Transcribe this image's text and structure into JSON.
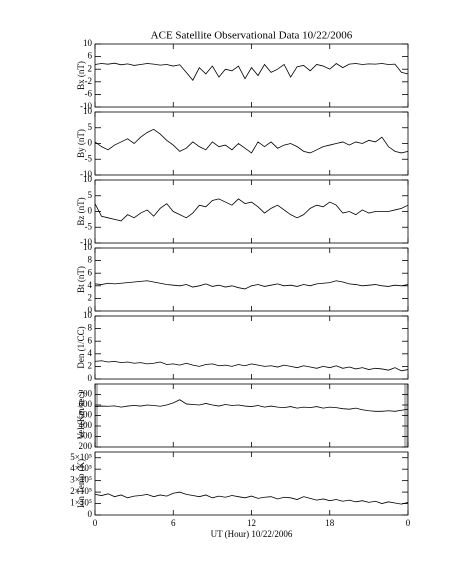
{
  "chart_data": [
    {
      "type": "line",
      "title": "ACE Satellite Observational Data   10/22/2006",
      "ylabel": "Bx (nT)",
      "color": "#000000",
      "x": [
        0,
        0.5,
        1,
        1.5,
        2,
        2.5,
        3,
        3.5,
        4,
        4.5,
        5,
        5.5,
        6,
        6.5,
        7,
        7.5,
        8,
        8.5,
        9,
        9.5,
        10,
        10.5,
        11,
        11.5,
        12,
        12.5,
        13,
        13.5,
        14,
        14.5,
        15,
        15.5,
        16,
        16.5,
        17,
        17.5,
        18,
        18.5,
        19,
        19.5,
        20,
        20.5,
        21,
        21.5,
        22,
        22.5,
        23,
        23.5,
        24
      ],
      "values": [
        3.5,
        3.8,
        3.6,
        3.9,
        3.4,
        3.7,
        3.2,
        3.5,
        3.8,
        3.6,
        3.3,
        3.5,
        3.0,
        3.4,
        1.0,
        -1.5,
        2.5,
        0.5,
        3.0,
        -0.5,
        2.0,
        1.5,
        3.0,
        -1.0,
        2.5,
        0.0,
        3.5,
        1.0,
        2.0,
        3.5,
        -0.5,
        2.8,
        3.2,
        1.5,
        3.5,
        3.0,
        2.0,
        3.8,
        2.5,
        3.6,
        3.8,
        3.5,
        3.7,
        3.6,
        3.8,
        3.5,
        3.6,
        1.0,
        0.5
      ],
      "xlim": [
        0,
        24
      ],
      "xticks": [
        0,
        6,
        12,
        18,
        24
      ],
      "ylim": [
        -10,
        10
      ],
      "yticks": [
        -10,
        -6,
        -2,
        2,
        6,
        10
      ]
    },
    {
      "type": "line",
      "ylabel": "By (nT)",
      "color": "#000000",
      "x": [
        0,
        0.5,
        1,
        1.5,
        2,
        2.5,
        3,
        3.5,
        4,
        4.5,
        5,
        5.5,
        6,
        6.5,
        7,
        7.5,
        8,
        8.5,
        9,
        9.5,
        10,
        10.5,
        11,
        11.5,
        12,
        12.5,
        13,
        13.5,
        14,
        14.5,
        15,
        15.5,
        16,
        16.5,
        17,
        17.5,
        18,
        18.5,
        19,
        19.5,
        20,
        20.5,
        21,
        21.5,
        22,
        22.5,
        23,
        23.5,
        24
      ],
      "values": [
        0.5,
        -1.0,
        -2.0,
        -0.5,
        0.5,
        1.5,
        0.0,
        2.0,
        3.5,
        4.5,
        3.0,
        1.0,
        -0.5,
        -2.5,
        -1.5,
        0.5,
        -1.0,
        -2.0,
        0.5,
        -1.0,
        -0.5,
        -2.0,
        0.0,
        -1.5,
        -3.0,
        0.5,
        -1.0,
        0.5,
        -1.5,
        -0.5,
        0.0,
        -1.0,
        -2.5,
        -3.0,
        -2.0,
        -1.0,
        -0.5,
        0.0,
        0.5,
        -0.5,
        0.5,
        0.0,
        1.0,
        0.5,
        2.0,
        -1.0,
        -2.5,
        -3.0,
        -2.5
      ],
      "xlim": [
        0,
        24
      ],
      "xticks": [
        0,
        6,
        12,
        18,
        24
      ],
      "ylim": [
        -10,
        10
      ],
      "yticks": [
        -10,
        -5,
        0,
        5,
        10
      ]
    },
    {
      "type": "line",
      "ylabel": "Bz (nT)",
      "color": "#000000",
      "x": [
        0,
        0.5,
        1,
        1.5,
        2,
        2.5,
        3,
        3.5,
        4,
        4.5,
        5,
        5.5,
        6,
        6.5,
        7,
        7.5,
        8,
        8.5,
        9,
        9.5,
        10,
        10.5,
        11,
        11.5,
        12,
        12.5,
        13,
        13.5,
        14,
        14.5,
        15,
        15.5,
        16,
        16.5,
        17,
        17.5,
        18,
        18.5,
        19,
        19.5,
        20,
        20.5,
        21,
        21.5,
        22,
        22.5,
        23,
        23.5,
        24
      ],
      "values": [
        2.5,
        -1.5,
        -2.0,
        -2.5,
        -3.0,
        -1.0,
        -2.0,
        -0.5,
        0.5,
        -1.5,
        1.0,
        2.5,
        0.0,
        -1.0,
        -2.0,
        -0.5,
        2.0,
        1.5,
        3.5,
        4.0,
        3.0,
        2.0,
        4.0,
        2.5,
        3.0,
        1.5,
        -0.5,
        1.0,
        2.0,
        0.5,
        -1.0,
        -2.0,
        -1.0,
        1.0,
        2.0,
        1.5,
        3.0,
        2.0,
        -0.5,
        0.0,
        -1.0,
        0.5,
        -0.5,
        0.0,
        0.0,
        0.0,
        0.5,
        1.0,
        2.0
      ],
      "xlim": [
        0,
        24
      ],
      "xticks": [
        0,
        6,
        12,
        18,
        24
      ],
      "ylim": [
        -10,
        10
      ],
      "yticks": [
        -10,
        -5,
        0,
        5,
        10
      ]
    },
    {
      "type": "line",
      "ylabel": "Bt (nT)",
      "color": "#000000",
      "x": [
        0,
        0.5,
        1,
        1.5,
        2,
        2.5,
        3,
        3.5,
        4,
        4.5,
        5,
        5.5,
        6,
        6.5,
        7,
        7.5,
        8,
        8.5,
        9,
        9.5,
        10,
        10.5,
        11,
        11.5,
        12,
        12.5,
        13,
        13.5,
        14,
        14.5,
        15,
        15.5,
        16,
        16.5,
        17,
        17.5,
        18,
        18.5,
        19,
        19.5,
        20,
        20.5,
        21,
        21.5,
        22,
        22.5,
        23,
        23.5,
        24
      ],
      "values": [
        4.3,
        4.2,
        4.4,
        4.3,
        4.4,
        4.5,
        4.6,
        4.7,
        4.8,
        4.6,
        4.4,
        4.2,
        4.1,
        4.0,
        4.2,
        3.8,
        4.0,
        4.3,
        3.9,
        4.1,
        3.8,
        4.0,
        3.7,
        3.5,
        4.0,
        4.2,
        3.9,
        4.1,
        4.3,
        4.0,
        4.1,
        3.9,
        4.2,
        4.0,
        4.3,
        4.4,
        4.5,
        4.8,
        4.6,
        4.3,
        4.2,
        4.0,
        4.1,
        4.2,
        4.0,
        3.9,
        4.1,
        4.0,
        4.2
      ],
      "xlim": [
        0,
        24
      ],
      "xticks": [
        0,
        6,
        12,
        18,
        24
      ],
      "ylim": [
        0,
        10
      ],
      "yticks": [
        0,
        2,
        4,
        6,
        8,
        10
      ]
    },
    {
      "type": "line",
      "ylabel": "Den (1/CC)",
      "color": "#000000",
      "x": [
        0,
        0.5,
        1,
        1.5,
        2,
        2.5,
        3,
        3.5,
        4,
        4.5,
        5,
        5.5,
        6,
        6.5,
        7,
        7.5,
        8,
        8.5,
        9,
        9.5,
        10,
        10.5,
        11,
        11.5,
        12,
        12.5,
        13,
        13.5,
        14,
        14.5,
        15,
        15.5,
        16,
        16.5,
        17,
        17.5,
        18,
        18.5,
        19,
        19.5,
        20,
        20.5,
        21,
        21.5,
        22,
        22.5,
        23,
        23.5,
        24
      ],
      "values": [
        2.8,
        2.9,
        2.7,
        2.8,
        2.6,
        2.7,
        2.5,
        2.6,
        2.4,
        2.5,
        2.7,
        2.3,
        2.4,
        2.2,
        2.5,
        2.2,
        2.0,
        2.3,
        2.4,
        2.1,
        2.2,
        2.0,
        2.3,
        2.1,
        2.4,
        2.2,
        2.0,
        2.1,
        1.9,
        2.2,
        2.0,
        1.8,
        2.1,
        1.9,
        1.7,
        2.0,
        1.8,
        2.1,
        1.7,
        1.9,
        1.6,
        1.8,
        1.5,
        1.7,
        1.6,
        1.4,
        1.8,
        1.3,
        1.5
      ],
      "xlim": [
        0,
        24
      ],
      "xticks": [
        0,
        6,
        12,
        18,
        24
      ],
      "ylim": [
        0,
        10
      ],
      "yticks": [
        0,
        2,
        4,
        6,
        8,
        10
      ]
    },
    {
      "type": "line",
      "ylabel": "Vel (Km/sec)",
      "color": "#000000",
      "x": [
        0,
        0.5,
        1,
        1.5,
        2,
        2.5,
        3,
        3.5,
        4,
        4.5,
        5,
        5.5,
        6,
        6.5,
        7,
        7.5,
        8,
        8.5,
        9,
        9.5,
        10,
        10.5,
        11,
        11.5,
        12,
        12.5,
        13,
        13.5,
        14,
        14.5,
        15,
        15.5,
        16,
        16.5,
        17,
        17.5,
        18,
        18.5,
        19,
        19.5,
        20,
        20.5,
        21,
        21.5,
        22,
        22.5,
        23,
        23.5,
        24
      ],
      "values": [
        585,
        590,
        588,
        592,
        580,
        590,
        595,
        590,
        600,
        595,
        588,
        600,
        620,
        650,
        610,
        605,
        600,
        615,
        600,
        590,
        605,
        595,
        600,
        590,
        585,
        595,
        580,
        590,
        580,
        575,
        585,
        570,
        580,
        575,
        585,
        570,
        580,
        575,
        565,
        560,
        570,
        555,
        545,
        540,
        540,
        545,
        540,
        550,
        560
      ],
      "xlim": [
        0,
        24
      ],
      "xticks": [
        0,
        6,
        12,
        18,
        24
      ],
      "ylim": [
        200,
        800
      ],
      "yticks": [
        200,
        300,
        400,
        500,
        600,
        700
      ]
    },
    {
      "type": "line",
      "ylabel": "Ion Temp (K)",
      "xlabel": "UT (Hour)   10/22/2006",
      "color": "#000000",
      "x": [
        0,
        0.5,
        1,
        1.5,
        2,
        2.5,
        3,
        3.5,
        4,
        4.5,
        5,
        5.5,
        6,
        6.5,
        7,
        7.5,
        8,
        8.5,
        9,
        9.5,
        10,
        10.5,
        11,
        11.5,
        12,
        12.5,
        13,
        13.5,
        14,
        14.5,
        15,
        15.5,
        16,
        16.5,
        17,
        17.5,
        18,
        18.5,
        19,
        19.5,
        20,
        20.5,
        21,
        21.5,
        22,
        22.5,
        23,
        23.5,
        24
      ],
      "values": [
        180000,
        170000,
        185000,
        160000,
        175000,
        150000,
        165000,
        170000,
        180000,
        160000,
        175000,
        165000,
        190000,
        200000,
        180000,
        170000,
        160000,
        175000,
        150000,
        165000,
        155000,
        170000,
        160000,
        150000,
        165000,
        145000,
        155000,
        160000,
        140000,
        155000,
        150000,
        135000,
        160000,
        145000,
        130000,
        140000,
        125000,
        135000,
        120000,
        130000,
        115000,
        125000,
        110000,
        120000,
        100000,
        115000,
        105000,
        95000,
        110000
      ],
      "xlim": [
        0,
        24
      ],
      "xticks": [
        0,
        6,
        12,
        18,
        {
          "value": 24,
          "label": "0"
        }
      ],
      "ylim": [
        0,
        550000
      ],
      "yticks": [
        0,
        {
          "value": 100000,
          "label": "1×10⁵"
        },
        {
          "value": 200000,
          "label": "2×10⁵"
        },
        {
          "value": 300000,
          "label": "3×10⁵"
        },
        {
          "value": 400000,
          "label": "4×10⁵"
        },
        {
          "value": 500000,
          "label": "5×10⁵"
        }
      ]
    }
  ]
}
